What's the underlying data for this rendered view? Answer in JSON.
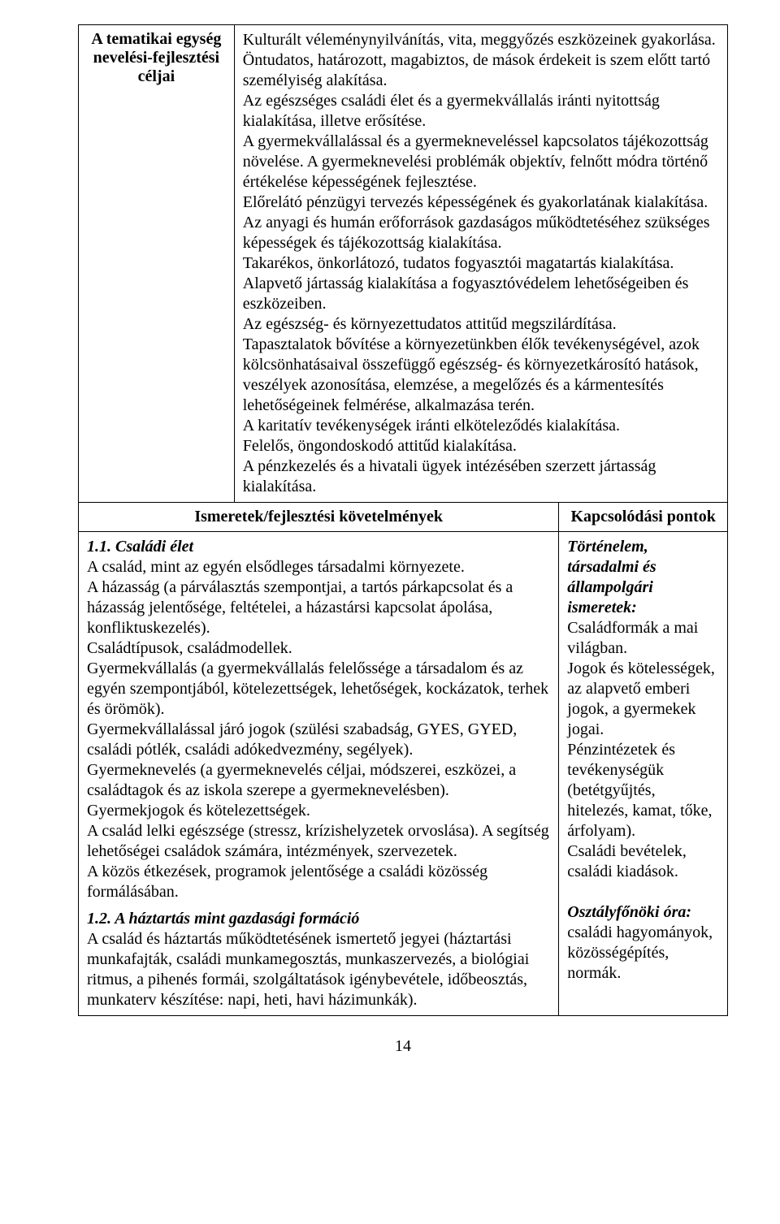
{
  "row1": {
    "label": "A tematikai egység nevelési-fejlesztési céljai",
    "content": "Kulturált véleménynyilvánítás, vita, meggyőzés eszközeinek gyakorlása.\nÖntudatos, határozott, magabiztos, de mások érdekeit is szem előtt tartó személyiség alakítása.\nAz egészséges családi élet és a gyermekvállalás iránti nyitottság kialakítása, illetve erősítése.\nA gyermekvállalással és a gyermekneveléssel kapcsolatos tájékozottság növelése. A gyermeknevelési problémák objektív, felnőtt módra történő értékelése képességének fejlesztése.\nElőrelátó pénzügyi tervezés képességének és gyakorlatának kialakítása.\nAz anyagi és humán erőforrások gazdaságos működtetéséhez szükséges képességek és tájékozottság kialakítása.\nTakarékos, önkorlátozó, tudatos fogyasztói magatartás kialakítása.\nAlapvető jártasság kialakítása a fogyasztóvédelem lehetőségeiben és eszközeiben.\nAz egészség- és környezettudatos attitűd megszilárdítása.\nTapasztalatok bővítése a környezetünkben élők tevékenységével, azok kölcsönhatásaival összefüggő egészség- és környezetkárosító hatások, veszélyek azonosítása, elemzése, a megelőzés és a kármentesítés lehetőségeinek felmérése, alkalmazása terén.\nA karitatív tevékenységek iránti elköteleződés kialakítása.\nFelelős, öngondoskodó attitűd kialakítása.\nA pénzkezelés és a hivatali ügyek intézésében szerzett jártasság kialakítása."
  },
  "row2": {
    "leftHeader": "Ismeretek/fejlesztési követelmények",
    "rightHeader": "Kapcsolódási pontok"
  },
  "row3": {
    "s1title": "1.1. Családi élet",
    "s1body": "A család, mint az egyén elsődleges társadalmi környezete.\nA házasság (a párválasztás szempontjai, a tartós párkapcsolat és a házasság jelentősége, feltételei, a házastársi kapcsolat ápolása, konfliktuskezelés).\nCsaládtípusok, családmodellek.\nGyermekvállalás (a gyermekvállalás felelőssége a társadalom és az egyén szempontjából, kötelezettségek, lehetőségek, kockázatok, terhek és örömök).\nGyermekvállalással járó jogok (szülési szabadság, GYES, GYED, családi pótlék, családi adókedvezmény, segélyek).\nGyermeknevelés (a gyermeknevelés céljai, módszerei, eszközei, a családtagok és az iskola szerepe a gyermeknevelésben). Gyermekjogok és kötelezettségek.\nA család lelki egészsége (stressz, krízishelyzetek orvoslása). A segítség lehetőségei családok számára, intézmények, szervezetek.\nA közös étkezések, programok jelentősége a családi közösség formálásában.",
    "s2title": "1.2. A háztartás mint gazdasági formáció",
    "s2body": "A család és háztartás működtetésének ismertető jegyei (háztartási munkafajták, családi munkamegosztás, munkaszervezés, a biológiai ritmus, a pihenés formái, szolgáltatások igénybevétele, időbeosztás, munkaterv készítése: napi, heti, havi házimunkák).",
    "kapcs1title": "Történelem, társadalmi és állampolgári ismeretek:",
    "kapcs1body": "Családformák a mai világban.\nJogok és kötelességek, az alapvető emberi jogok, a gyermekek jogai.\nPénzintézetek és tevékenységük (betétgyűjtés, hitelezés, kamat, tőke, árfolyam).\nCsaládi bevételek, családi kiadások.",
    "kapcs2title": "Osztályfőnöki óra:",
    "kapcs2body": "családi hagyományok, közösségépítés, normák."
  },
  "pageNumber": "14"
}
